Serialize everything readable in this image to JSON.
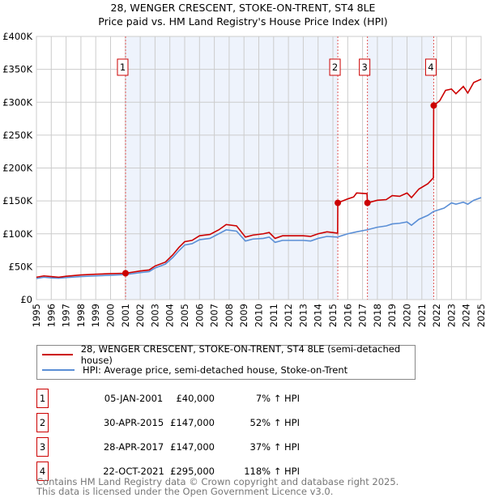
{
  "title": "28, WENGER CRESCENT, STOKE-ON-TRENT, ST4 8LE",
  "subtitle": "Price paid vs. HM Land Registry's House Price Index (HPI)",
  "chart_data": {
    "type": "line",
    "title": "28, WENGER CRESCENT, STOKE-ON-TRENT, ST4 8LE",
    "subtitle": "Price paid vs. HM Land Registry's House Price Index (HPI)",
    "xlim": [
      1995,
      2025
    ],
    "ylim": [
      0,
      400000
    ],
    "y_ticks": [
      0,
      50000,
      100000,
      150000,
      200000,
      250000,
      300000,
      350000,
      400000
    ],
    "y_tick_labels": [
      "£0",
      "£50K",
      "£100K",
      "£150K",
      "£200K",
      "£250K",
      "£300K",
      "£350K",
      "£400K"
    ],
    "x_ticks": [
      "1995",
      "1996",
      "1997",
      "1998",
      "1999",
      "2000",
      "2001",
      "2002",
      "2003",
      "2004",
      "2005",
      "2006",
      "2007",
      "2008",
      "2009",
      "2010",
      "2011",
      "2012",
      "2013",
      "2014",
      "2015",
      "2016",
      "2017",
      "2018",
      "2019",
      "2020",
      "2021",
      "2022",
      "2023",
      "2024",
      "2025"
    ],
    "grid": true,
    "legend_placement": "below",
    "series": [
      {
        "name": "28, WENGER CRESCENT, STOKE-ON-TRENT, ST4 8LE (semi-detached house)",
        "color": "#cc0000",
        "points": [
          [
            1995,
            34000
          ],
          [
            1995.5,
            36000
          ],
          [
            1996,
            35000
          ],
          [
            1996.5,
            34000
          ],
          [
            1997,
            35500
          ],
          [
            1998,
            37500
          ],
          [
            1999,
            38500
          ],
          [
            2000,
            39500
          ],
          [
            2001.01,
            40000
          ],
          [
            2002,
            43500
          ],
          [
            2002.6,
            45000
          ],
          [
            2003,
            51000
          ],
          [
            2003.7,
            57000
          ],
          [
            2004.2,
            68000
          ],
          [
            2004.6,
            79000
          ],
          [
            2005,
            88000
          ],
          [
            2005.5,
            90000
          ],
          [
            2006,
            97000
          ],
          [
            2006.7,
            99000
          ],
          [
            2007.3,
            106000
          ],
          [
            2007.8,
            114000
          ],
          [
            2008.5,
            112000
          ],
          [
            2009.1,
            95000
          ],
          [
            2009.6,
            98000
          ],
          [
            2010.3,
            100000
          ],
          [
            2010.7,
            102000
          ],
          [
            2011.1,
            93000
          ],
          [
            2011.6,
            97000
          ],
          [
            2012.3,
            97000
          ],
          [
            2013,
            97000
          ],
          [
            2013.5,
            96000
          ],
          [
            2014,
            100000
          ],
          [
            2014.6,
            103000
          ],
          [
            2015.32,
            101000
          ],
          [
            2015.33,
            147000
          ],
          [
            2016,
            153000
          ],
          [
            2016.4,
            156000
          ],
          [
            2016.6,
            162000
          ],
          [
            2017.3,
            161000
          ],
          [
            2017.33,
            147000
          ],
          [
            2018,
            151000
          ],
          [
            2018.6,
            152000
          ],
          [
            2019,
            158000
          ],
          [
            2019.5,
            157000
          ],
          [
            2020,
            162000
          ],
          [
            2020.3,
            155000
          ],
          [
            2020.8,
            168000
          ],
          [
            2021.4,
            176000
          ],
          [
            2021.78,
            185000
          ],
          [
            2021.8,
            295000
          ],
          [
            2022.2,
            302000
          ],
          [
            2022.6,
            318000
          ],
          [
            2023,
            320000
          ],
          [
            2023.3,
            313000
          ],
          [
            2023.8,
            324000
          ],
          [
            2024.1,
            314000
          ],
          [
            2024.5,
            330000
          ],
          [
            2025,
            335000
          ]
        ]
      },
      {
        "name": "HPI: Average price, semi-detached house, Stoke-on-Trent",
        "color": "#5b8fd6",
        "points": [
          [
            1995,
            32000
          ],
          [
            1995.5,
            34000
          ],
          [
            1996,
            33000
          ],
          [
            1996.5,
            32500
          ],
          [
            1997,
            33500
          ],
          [
            1998,
            35000
          ],
          [
            1999,
            36000
          ],
          [
            2000,
            37000
          ],
          [
            2001,
            38000
          ],
          [
            2002,
            41000
          ],
          [
            2002.6,
            42500
          ],
          [
            2003,
            48000
          ],
          [
            2003.7,
            54000
          ],
          [
            2004.2,
            64000
          ],
          [
            2004.6,
            74000
          ],
          [
            2005,
            83000
          ],
          [
            2005.5,
            85000
          ],
          [
            2006,
            91000
          ],
          [
            2006.7,
            93000
          ],
          [
            2007.3,
            100000
          ],
          [
            2007.8,
            106000
          ],
          [
            2008.5,
            104000
          ],
          [
            2009.1,
            89000
          ],
          [
            2009.6,
            92000
          ],
          [
            2010.3,
            93000
          ],
          [
            2010.7,
            95000
          ],
          [
            2011.1,
            87000
          ],
          [
            2011.6,
            90000
          ],
          [
            2012.3,
            90000
          ],
          [
            2013,
            90000
          ],
          [
            2013.5,
            89000
          ],
          [
            2014,
            93000
          ],
          [
            2014.6,
            96000
          ],
          [
            2015.3,
            95000
          ],
          [
            2016,
            100000
          ],
          [
            2016.6,
            103000
          ],
          [
            2017.3,
            106000
          ],
          [
            2018,
            110000
          ],
          [
            2018.6,
            112000
          ],
          [
            2019,
            115000
          ],
          [
            2019.5,
            116000
          ],
          [
            2020,
            118000
          ],
          [
            2020.3,
            113000
          ],
          [
            2020.8,
            122000
          ],
          [
            2021.4,
            128000
          ],
          [
            2021.8,
            134000
          ],
          [
            2022.5,
            139000
          ],
          [
            2023,
            147000
          ],
          [
            2023.3,
            145000
          ],
          [
            2023.8,
            148000
          ],
          [
            2024.1,
            145000
          ],
          [
            2024.5,
            151000
          ],
          [
            2025,
            155000
          ]
        ]
      }
    ],
    "sales": [
      {
        "id": "1",
        "x": 2001.01,
        "price": 40000
      },
      {
        "id": "2",
        "x": 2015.33,
        "price": 147000
      },
      {
        "id": "3",
        "x": 2017.33,
        "price": 147000
      },
      {
        "id": "4",
        "x": 2021.8,
        "price": 295000
      }
    ],
    "shaded_ranges": [
      [
        2001.01,
        2015.33
      ],
      [
        2017.33,
        2021.8
      ]
    ]
  },
  "legend": {
    "property": "28, WENGER CRESCENT, STOKE-ON-TRENT, ST4 8LE (semi-detached house)",
    "hpi": "HPI: Average price, semi-detached house, Stoke-on-Trent"
  },
  "transactions": [
    {
      "num": "1",
      "date": "05-JAN-2001",
      "price": "£40,000",
      "hpi": "7% ↑ HPI"
    },
    {
      "num": "2",
      "date": "30-APR-2015",
      "price": "£147,000",
      "hpi": "52% ↑ HPI"
    },
    {
      "num": "3",
      "date": "28-APR-2017",
      "price": "£147,000",
      "hpi": "37% ↑ HPI"
    },
    {
      "num": "4",
      "date": "22-OCT-2021",
      "price": "£295,000",
      "hpi": "118% ↑ HPI"
    }
  ],
  "footer": {
    "line1": "Contains HM Land Registry data © Crown copyright and database right 2025.",
    "line2": "This data is licensed under the Open Government Licence v3.0."
  }
}
